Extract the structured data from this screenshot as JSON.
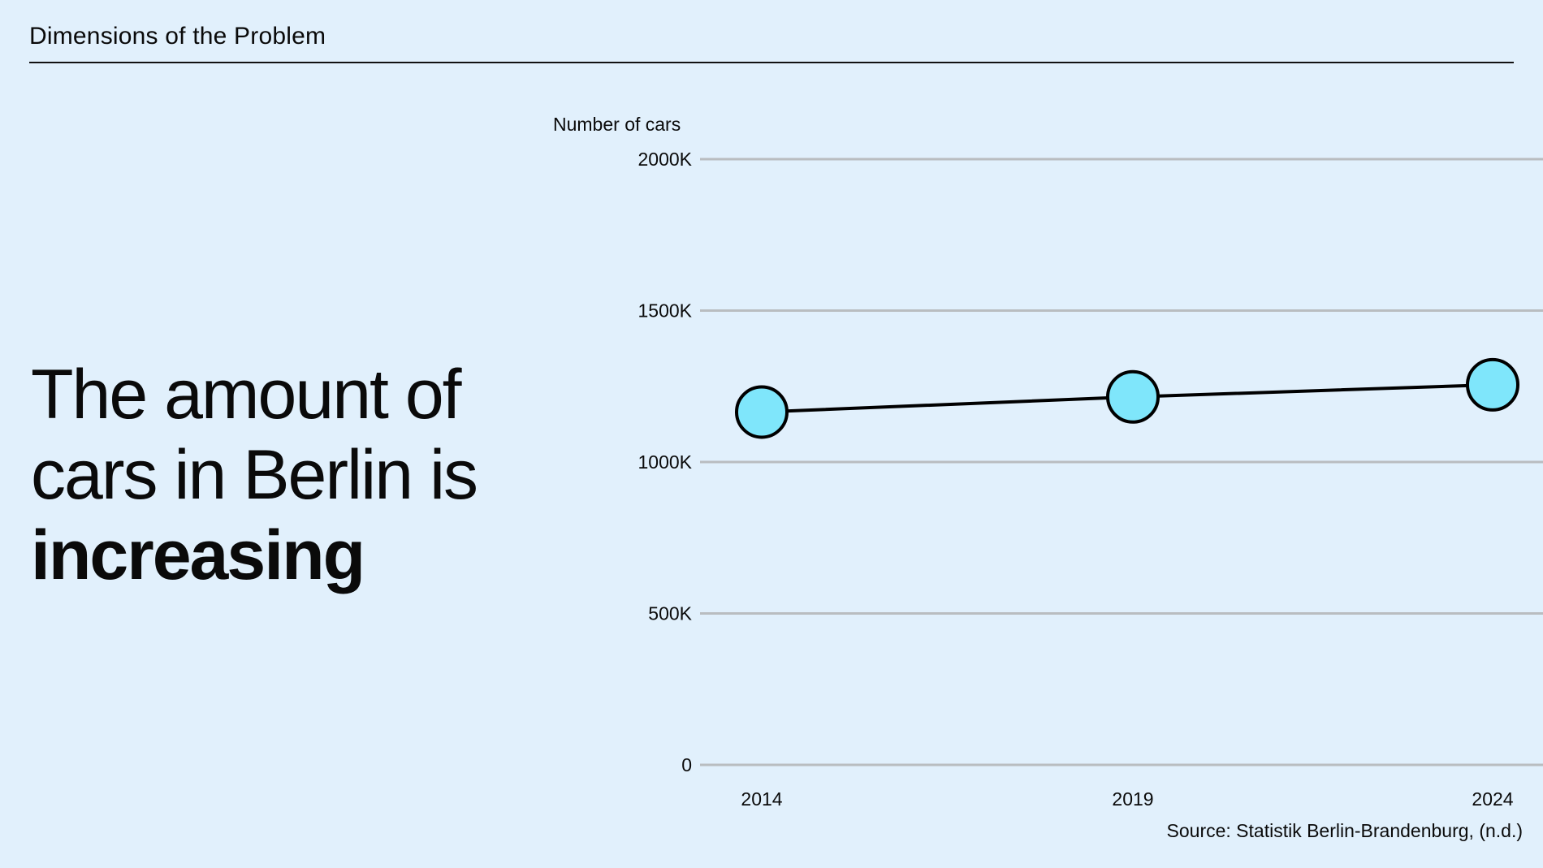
{
  "section_title": "Dimensions of the Problem",
  "headline": {
    "line1": "The amount of",
    "line2": "cars in Berlin is",
    "emphasis": "increasing"
  },
  "source": "Source: Statistik Berlin-Brandenburg, (n.d.)",
  "colors": {
    "background": "#e1f0fc",
    "marker_fill": "#7fe6fb",
    "line": "#000000",
    "grid": "#b9bdc0"
  },
  "chart_data": {
    "type": "line",
    "ylabel": "Number of cars",
    "xlabel": "",
    "categories": [
      "2014",
      "2019",
      "2024"
    ],
    "values": [
      1165000,
      1215000,
      1255000
    ],
    "ylim": [
      0,
      2000000
    ],
    "yticks": [
      0,
      500000,
      1000000,
      1500000,
      2000000
    ],
    "ytick_labels": [
      "0",
      "500K",
      "1000K",
      "1500K",
      "2000K"
    ],
    "grid": true,
    "legend": "none",
    "marker": "circle"
  }
}
